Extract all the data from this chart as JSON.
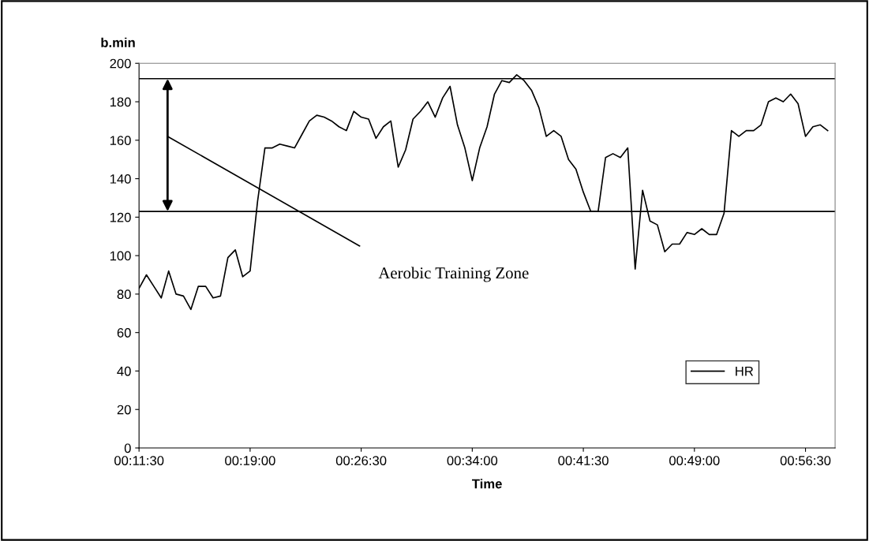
{
  "chart_data": {
    "type": "line",
    "ylabel": "b.min",
    "xlabel": "Time",
    "x": [
      0.19167,
      0.2,
      0.20833,
      0.21667,
      0.225,
      0.23333,
      0.24167,
      0.25,
      0.25833,
      0.26667,
      0.275,
      0.28333,
      0.29167,
      0.3,
      0.30833,
      0.31667,
      0.325,
      0.33333,
      0.34167,
      0.35,
      0.35833,
      0.36667,
      0.375,
      0.38333,
      0.39167,
      0.4,
      0.40833,
      0.41667,
      0.425,
      0.43333,
      0.44167,
      0.45,
      0.45833,
      0.46667,
      0.475,
      0.48333,
      0.49167,
      0.5,
      0.50833,
      0.51667,
      0.525,
      0.53333,
      0.54167,
      0.55,
      0.55833,
      0.56667,
      0.575,
      0.58333,
      0.59167,
      0.6,
      0.60833,
      0.61667,
      0.625,
      0.63333,
      0.64167,
      0.65,
      0.65833,
      0.66667,
      0.675,
      0.68333,
      0.69167,
      0.7,
      0.70833,
      0.71667,
      0.725,
      0.73333,
      0.74167,
      0.75,
      0.75833,
      0.76667,
      0.775,
      0.78333,
      0.79167,
      0.8,
      0.80833,
      0.81667,
      0.825,
      0.83333,
      0.84167,
      0.85,
      0.85833,
      0.86667,
      0.875,
      0.88333,
      0.89167,
      0.9,
      0.90833,
      0.91667,
      0.925,
      0.93333,
      0.94167,
      0.95,
      0.95833,
      0.96667
    ],
    "series": [
      {
        "name": "HR",
        "color": "#000000",
        "values": [
          83,
          90,
          84,
          78,
          92,
          80,
          79,
          72,
          84,
          84,
          78,
          79,
          99,
          103,
          89,
          92,
          128,
          156,
          156,
          158,
          157,
          156,
          163,
          170,
          173,
          172,
          170,
          167,
          165,
          175,
          172,
          171,
          161,
          167,
          170,
          146,
          155,
          171,
          175,
          180,
          172,
          182,
          188,
          168,
          156,
          139,
          156,
          167,
          184,
          191,
          190,
          194,
          191,
          186,
          177,
          162,
          165,
          162,
          150,
          145,
          133,
          123,
          123,
          151,
          153,
          151,
          156,
          93,
          134,
          118,
          116,
          102,
          106,
          106,
          112,
          111,
          114,
          111,
          111,
          122,
          165,
          162,
          165,
          165,
          168,
          180,
          182,
          180,
          184,
          179,
          162,
          167,
          168,
          165
        ]
      }
    ],
    "xlim": [
      0.19167,
      0.975
    ],
    "xticks": [
      {
        "value": 0.19167,
        "label": "00:11:30"
      },
      {
        "value": 0.31667,
        "label": "00:19:00"
      },
      {
        "value": 0.44167,
        "label": "00:26:30"
      },
      {
        "value": 0.56667,
        "label": "00:34:00"
      },
      {
        "value": 0.69167,
        "label": "00:41:30"
      },
      {
        "value": 0.81667,
        "label": "00:49:00"
      },
      {
        "value": 0.94167,
        "label": "00:56:30"
      }
    ],
    "ylim": [
      0,
      200
    ],
    "yticks": [
      0,
      20,
      40,
      60,
      80,
      100,
      120,
      140,
      160,
      180,
      200
    ],
    "ref_lines": [
      {
        "axis": "y",
        "value": 123,
        "color": "#000000"
      },
      {
        "axis": "y",
        "value": 192,
        "color": "#000000"
      }
    ],
    "annotations": [
      "Aerobic Training Zone"
    ],
    "grid": false,
    "legend": "bottom right",
    "marker": "none",
    "line_style": "solid"
  }
}
